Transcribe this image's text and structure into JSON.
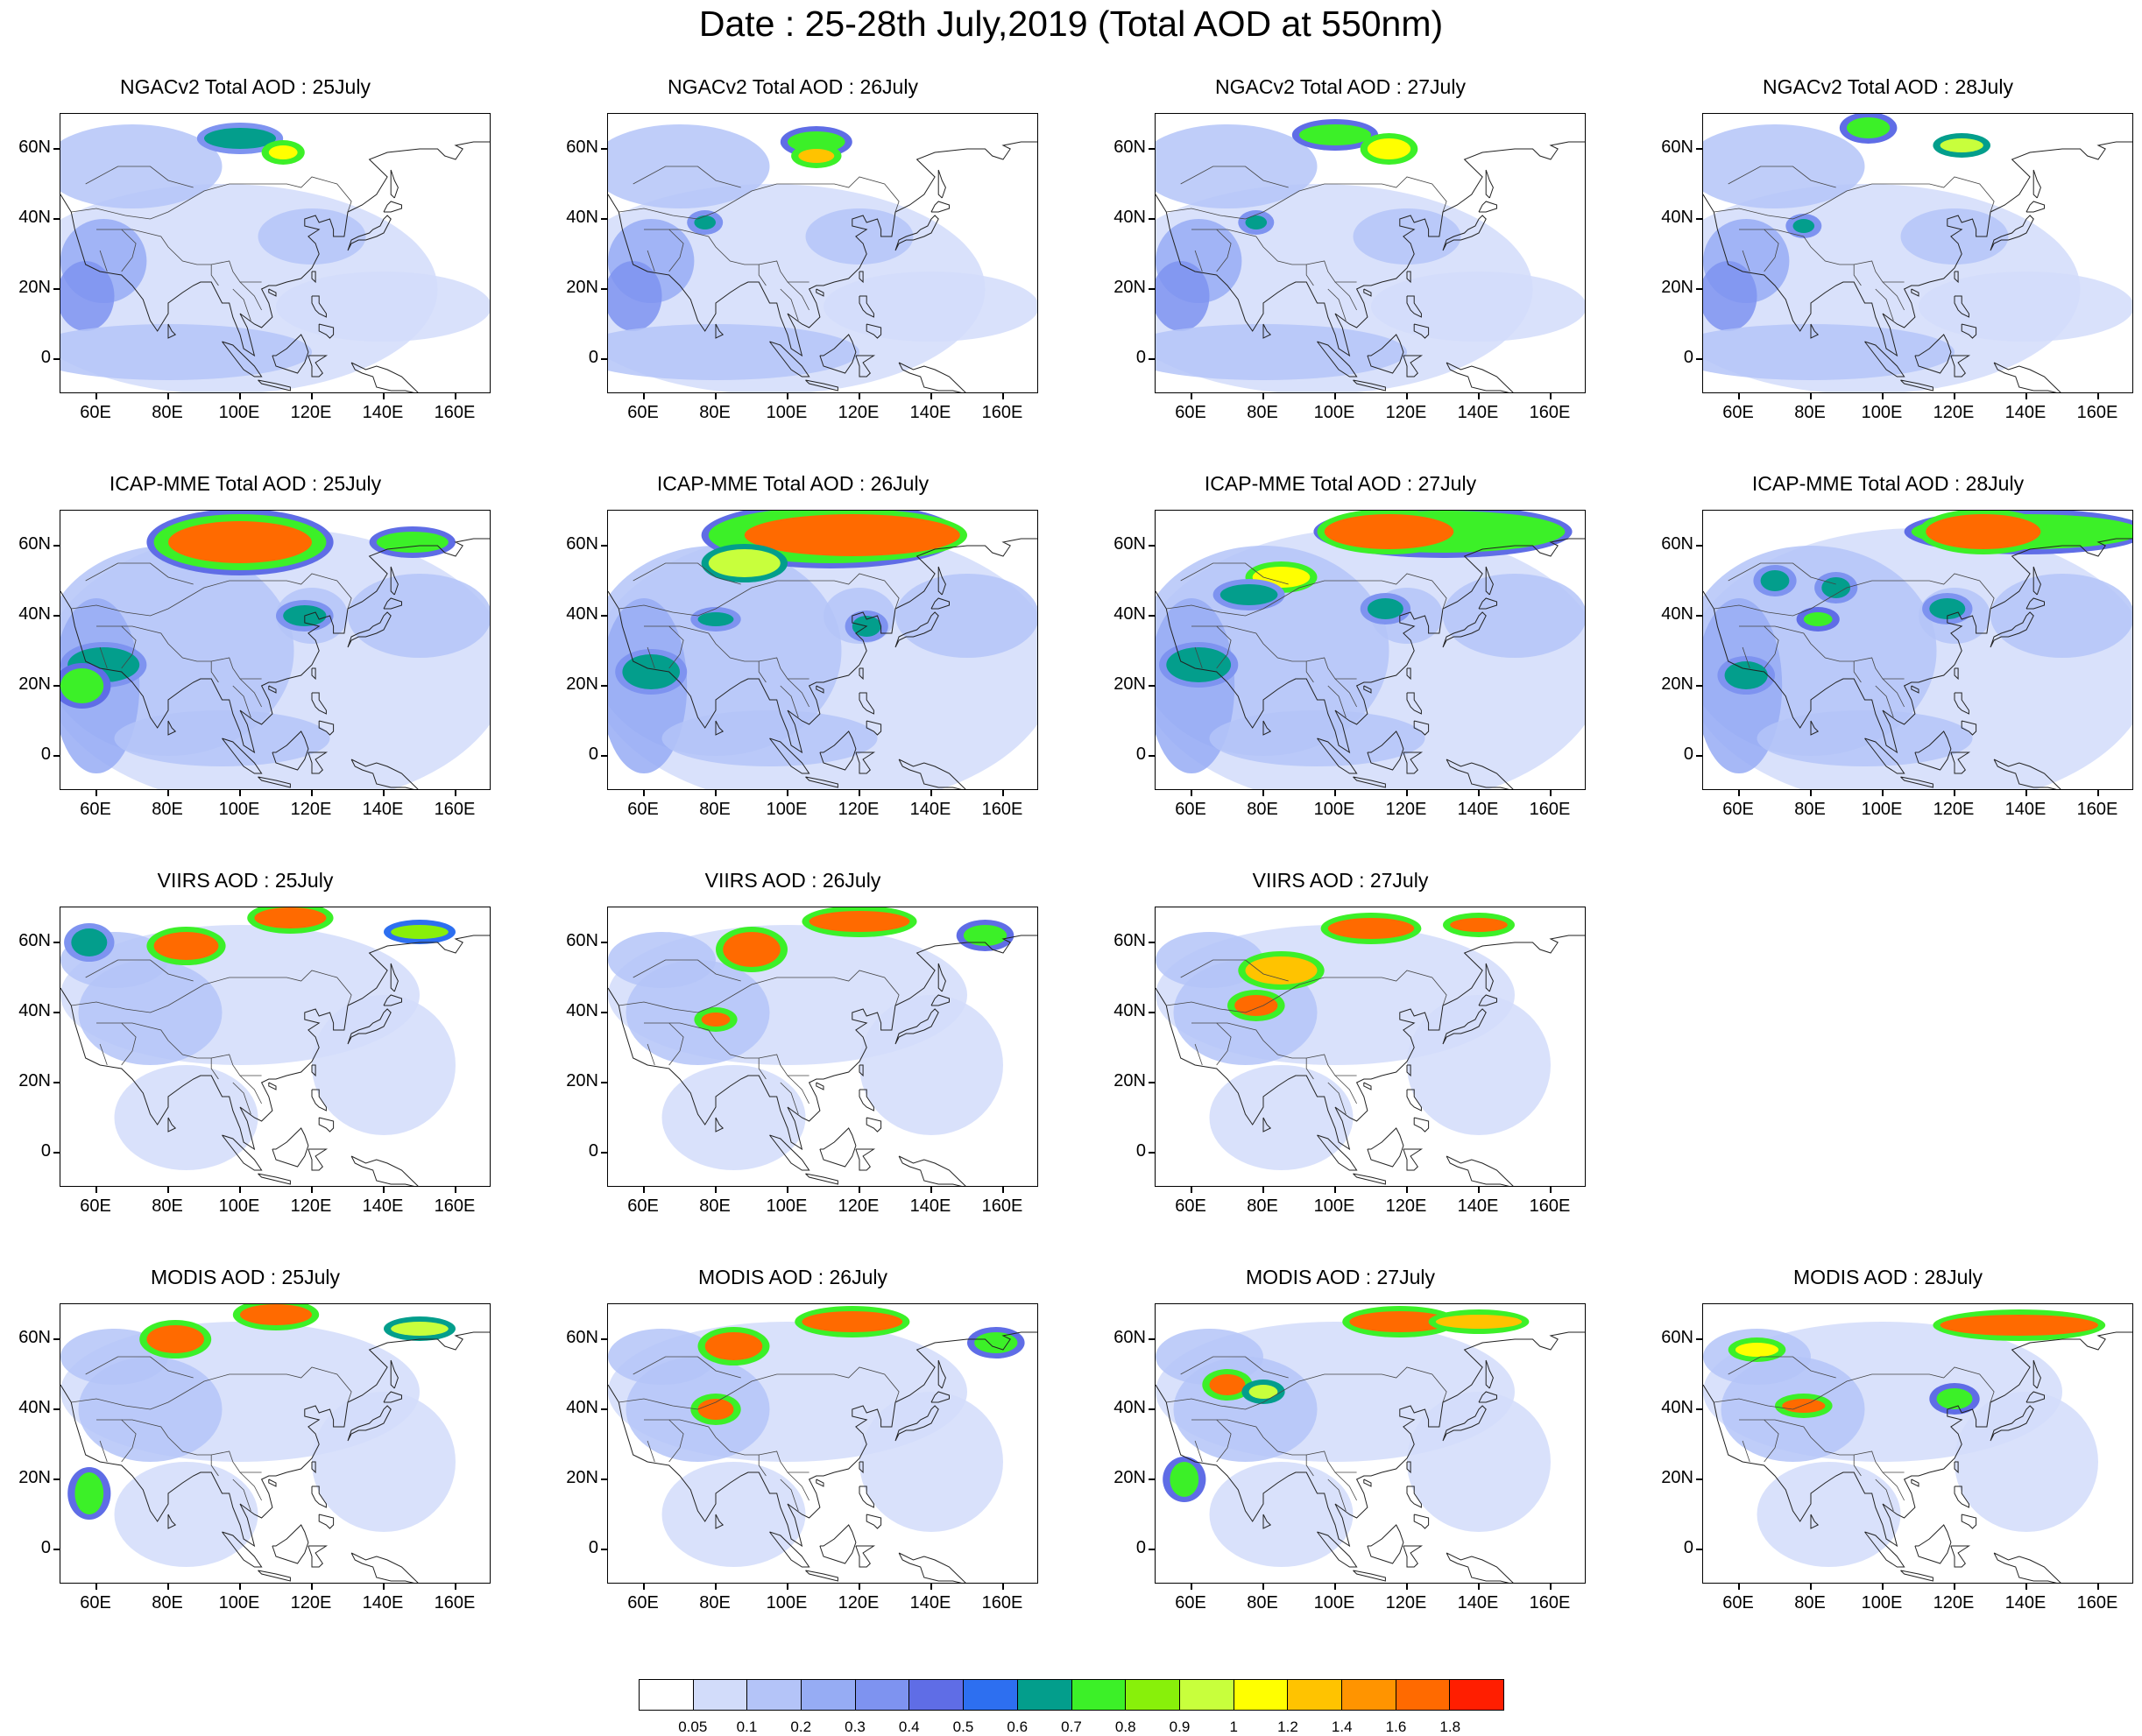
{
  "title": "Date : 25-28th July,2019 (Total AOD at 550nm)",
  "lat_labels": [
    "60N",
    "40N",
    "20N",
    "0"
  ],
  "lon_labels": [
    "60E",
    "80E",
    "100E",
    "120E",
    "140E",
    "160E"
  ],
  "panels": [
    {
      "title": "NGACv2 Total AOD : 25July",
      "plumes": [
        {
          "lon": 100,
          "lat": 63,
          "rx": 10,
          "ry": 3,
          "level": 7
        },
        {
          "lon": 112,
          "lat": 59,
          "rx": 4,
          "ry": 2,
          "level": 11
        }
      ]
    },
    {
      "title": "NGACv2 Total AOD : 26July",
      "plumes": [
        {
          "lon": 108,
          "lat": 62,
          "rx": 8,
          "ry": 3,
          "level": 8
        },
        {
          "lon": 108,
          "lat": 58,
          "rx": 5,
          "ry": 2,
          "level": 12
        },
        {
          "lon": 77,
          "lat": 39,
          "rx": 3,
          "ry": 2,
          "level": 7
        }
      ]
    },
    {
      "title": "NGACv2 Total AOD : 27July",
      "plumes": [
        {
          "lon": 100,
          "lat": 64,
          "rx": 10,
          "ry": 3,
          "level": 8
        },
        {
          "lon": 115,
          "lat": 60,
          "rx": 6,
          "ry": 3,
          "level": 11
        },
        {
          "lon": 78,
          "lat": 39,
          "rx": 3,
          "ry": 2,
          "level": 7
        }
      ]
    },
    {
      "title": "NGACv2 Total AOD : 28July",
      "plumes": [
        {
          "lon": 96,
          "lat": 66,
          "rx": 6,
          "ry": 3,
          "level": 8
        },
        {
          "lon": 122,
          "lat": 61,
          "rx": 6,
          "ry": 2,
          "level": 10
        },
        {
          "lon": 78,
          "lat": 38,
          "rx": 3,
          "ry": 2,
          "level": 7
        }
      ]
    },
    {
      "title": "ICAP-MME Total AOD : 25July",
      "plumes": [
        {
          "lon": 100,
          "lat": 61,
          "rx": 24,
          "ry": 8,
          "level": 8
        },
        {
          "lon": 100,
          "lat": 61,
          "rx": 20,
          "ry": 6,
          "level": 14
        },
        {
          "lon": 148,
          "lat": 61,
          "rx": 10,
          "ry": 3,
          "level": 8
        },
        {
          "lon": 118,
          "lat": 40,
          "rx": 6,
          "ry": 3,
          "level": 7
        },
        {
          "lon": 62,
          "lat": 26,
          "rx": 10,
          "ry": 5,
          "level": 7
        },
        {
          "lon": 56,
          "lat": 20,
          "rx": 6,
          "ry": 5,
          "level": 8
        }
      ]
    },
    {
      "title": "ICAP-MME Total AOD : 26July",
      "plumes": [
        {
          "lon": 112,
          "lat": 63,
          "rx": 34,
          "ry": 8,
          "level": 8
        },
        {
          "lon": 118,
          "lat": 63,
          "rx": 30,
          "ry": 6,
          "level": 14
        },
        {
          "lon": 88,
          "lat": 55,
          "rx": 10,
          "ry": 4,
          "level": 10
        },
        {
          "lon": 80,
          "lat": 39,
          "rx": 5,
          "ry": 2,
          "level": 7
        },
        {
          "lon": 122,
          "lat": 37,
          "rx": 4,
          "ry": 3,
          "level": 7
        },
        {
          "lon": 62,
          "lat": 24,
          "rx": 8,
          "ry": 5,
          "level": 7
        }
      ]
    },
    {
      "title": "ICAP-MME Total AOD : 27July",
      "plumes": [
        {
          "lon": 130,
          "lat": 64,
          "rx": 34,
          "ry": 6,
          "level": 8
        },
        {
          "lon": 115,
          "lat": 64,
          "rx": 18,
          "ry": 5,
          "level": 14
        },
        {
          "lon": 85,
          "lat": 51,
          "rx": 8,
          "ry": 3,
          "level": 11
        },
        {
          "lon": 76,
          "lat": 46,
          "rx": 8,
          "ry": 3,
          "level": 7
        },
        {
          "lon": 114,
          "lat": 42,
          "rx": 5,
          "ry": 3,
          "level": 7
        },
        {
          "lon": 62,
          "lat": 26,
          "rx": 9,
          "ry": 5,
          "level": 7
        }
      ]
    },
    {
      "title": "ICAP-MME Total AOD : 28July",
      "plumes": [
        {
          "lon": 140,
          "lat": 64,
          "rx": 32,
          "ry": 5,
          "level": 8
        },
        {
          "lon": 128,
          "lat": 64,
          "rx": 16,
          "ry": 5,
          "level": 14
        },
        {
          "lon": 70,
          "lat": 50,
          "rx": 4,
          "ry": 3,
          "level": 7
        },
        {
          "lon": 87,
          "lat": 48,
          "rx": 4,
          "ry": 3,
          "level": 7
        },
        {
          "lon": 82,
          "lat": 39,
          "rx": 4,
          "ry": 2,
          "level": 8
        },
        {
          "lon": 118,
          "lat": 42,
          "rx": 5,
          "ry": 3,
          "level": 7
        },
        {
          "lon": 62,
          "lat": 23,
          "rx": 6,
          "ry": 4,
          "level": 7
        }
      ]
    },
    {
      "title": "VIIRS AOD : 25July",
      "plumes": [
        {
          "lon": 114,
          "lat": 67,
          "rx": 10,
          "ry": 3,
          "level": 14
        },
        {
          "lon": 85,
          "lat": 59,
          "rx": 9,
          "ry": 4,
          "level": 14
        },
        {
          "lon": 150,
          "lat": 63,
          "rx": 8,
          "ry": 2,
          "level": 9
        },
        {
          "lon": 58,
          "lat": 60,
          "rx": 5,
          "ry": 4,
          "level": 7
        }
      ]
    },
    {
      "title": "VIIRS AOD : 26July",
      "plumes": [
        {
          "lon": 120,
          "lat": 66,
          "rx": 14,
          "ry": 3,
          "level": 14
        },
        {
          "lon": 90,
          "lat": 58,
          "rx": 8,
          "ry": 5,
          "level": 14
        },
        {
          "lon": 80,
          "lat": 38,
          "rx": 4,
          "ry": 2,
          "level": 14
        },
        {
          "lon": 155,
          "lat": 62,
          "rx": 6,
          "ry": 3,
          "level": 8
        }
      ]
    },
    {
      "title": "VIIRS AOD : 27July",
      "plumes": [
        {
          "lon": 110,
          "lat": 64,
          "rx": 12,
          "ry": 3,
          "level": 14
        },
        {
          "lon": 140,
          "lat": 65,
          "rx": 8,
          "ry": 2,
          "level": 14
        },
        {
          "lon": 85,
          "lat": 52,
          "rx": 10,
          "ry": 4,
          "level": 12
        },
        {
          "lon": 78,
          "lat": 42,
          "rx": 6,
          "ry": 3,
          "level": 14
        }
      ]
    },
    null,
    {
      "title": "MODIS AOD : 25July",
      "plumes": [
        {
          "lon": 110,
          "lat": 67,
          "rx": 10,
          "ry": 3,
          "level": 14
        },
        {
          "lon": 82,
          "lat": 60,
          "rx": 8,
          "ry": 4,
          "level": 14
        },
        {
          "lon": 150,
          "lat": 63,
          "rx": 8,
          "ry": 2,
          "level": 10
        },
        {
          "lon": 58,
          "lat": 16,
          "rx": 4,
          "ry": 6,
          "level": 8
        }
      ]
    },
    {
      "title": "MODIS AOD : 26July",
      "plumes": [
        {
          "lon": 118,
          "lat": 65,
          "rx": 14,
          "ry": 3,
          "level": 14
        },
        {
          "lon": 85,
          "lat": 58,
          "rx": 8,
          "ry": 4,
          "level": 14
        },
        {
          "lon": 80,
          "lat": 40,
          "rx": 5,
          "ry": 3,
          "level": 14
        },
        {
          "lon": 158,
          "lat": 59,
          "rx": 6,
          "ry": 3,
          "level": 8
        }
      ]
    },
    {
      "title": "MODIS AOD : 27July",
      "plumes": [
        {
          "lon": 118,
          "lat": 65,
          "rx": 14,
          "ry": 3,
          "level": 14
        },
        {
          "lon": 140,
          "lat": 65,
          "rx": 12,
          "ry": 2,
          "level": 12
        },
        {
          "lon": 70,
          "lat": 47,
          "rx": 5,
          "ry": 3,
          "level": 14
        },
        {
          "lon": 80,
          "lat": 45,
          "rx": 4,
          "ry": 2,
          "level": 10
        },
        {
          "lon": 58,
          "lat": 20,
          "rx": 4,
          "ry": 5,
          "level": 8
        }
      ]
    },
    {
      "title": "MODIS AOD : 28July",
      "plumes": [
        {
          "lon": 138,
          "lat": 64,
          "rx": 22,
          "ry": 3,
          "level": 14
        },
        {
          "lon": 65,
          "lat": 57,
          "rx": 6,
          "ry": 2,
          "level": 11
        },
        {
          "lon": 78,
          "lat": 41,
          "rx": 6,
          "ry": 2,
          "level": 14
        },
        {
          "lon": 120,
          "lat": 43,
          "rx": 5,
          "ry": 3,
          "level": 8
        }
      ]
    }
  ],
  "colorbar": {
    "labels": [
      "0.05",
      "0.1",
      "0.2",
      "0.3",
      "0.4",
      "0.5",
      "0.6",
      "0.7",
      "0.8",
      "0.9",
      "1",
      "1.2",
      "1.4",
      "1.6",
      "1.8"
    ],
    "colors": [
      "#ffffff",
      "#d2dcfa",
      "#b4c4f8",
      "#96acf4",
      "#7e93f0",
      "#5f6de6",
      "#2d6ff0",
      "#039e8c",
      "#3cf028",
      "#88f00a",
      "#c8ff3c",
      "#ffff00",
      "#ffc300",
      "#ff9400",
      "#ff6a00",
      "#ff1e00"
    ]
  }
}
